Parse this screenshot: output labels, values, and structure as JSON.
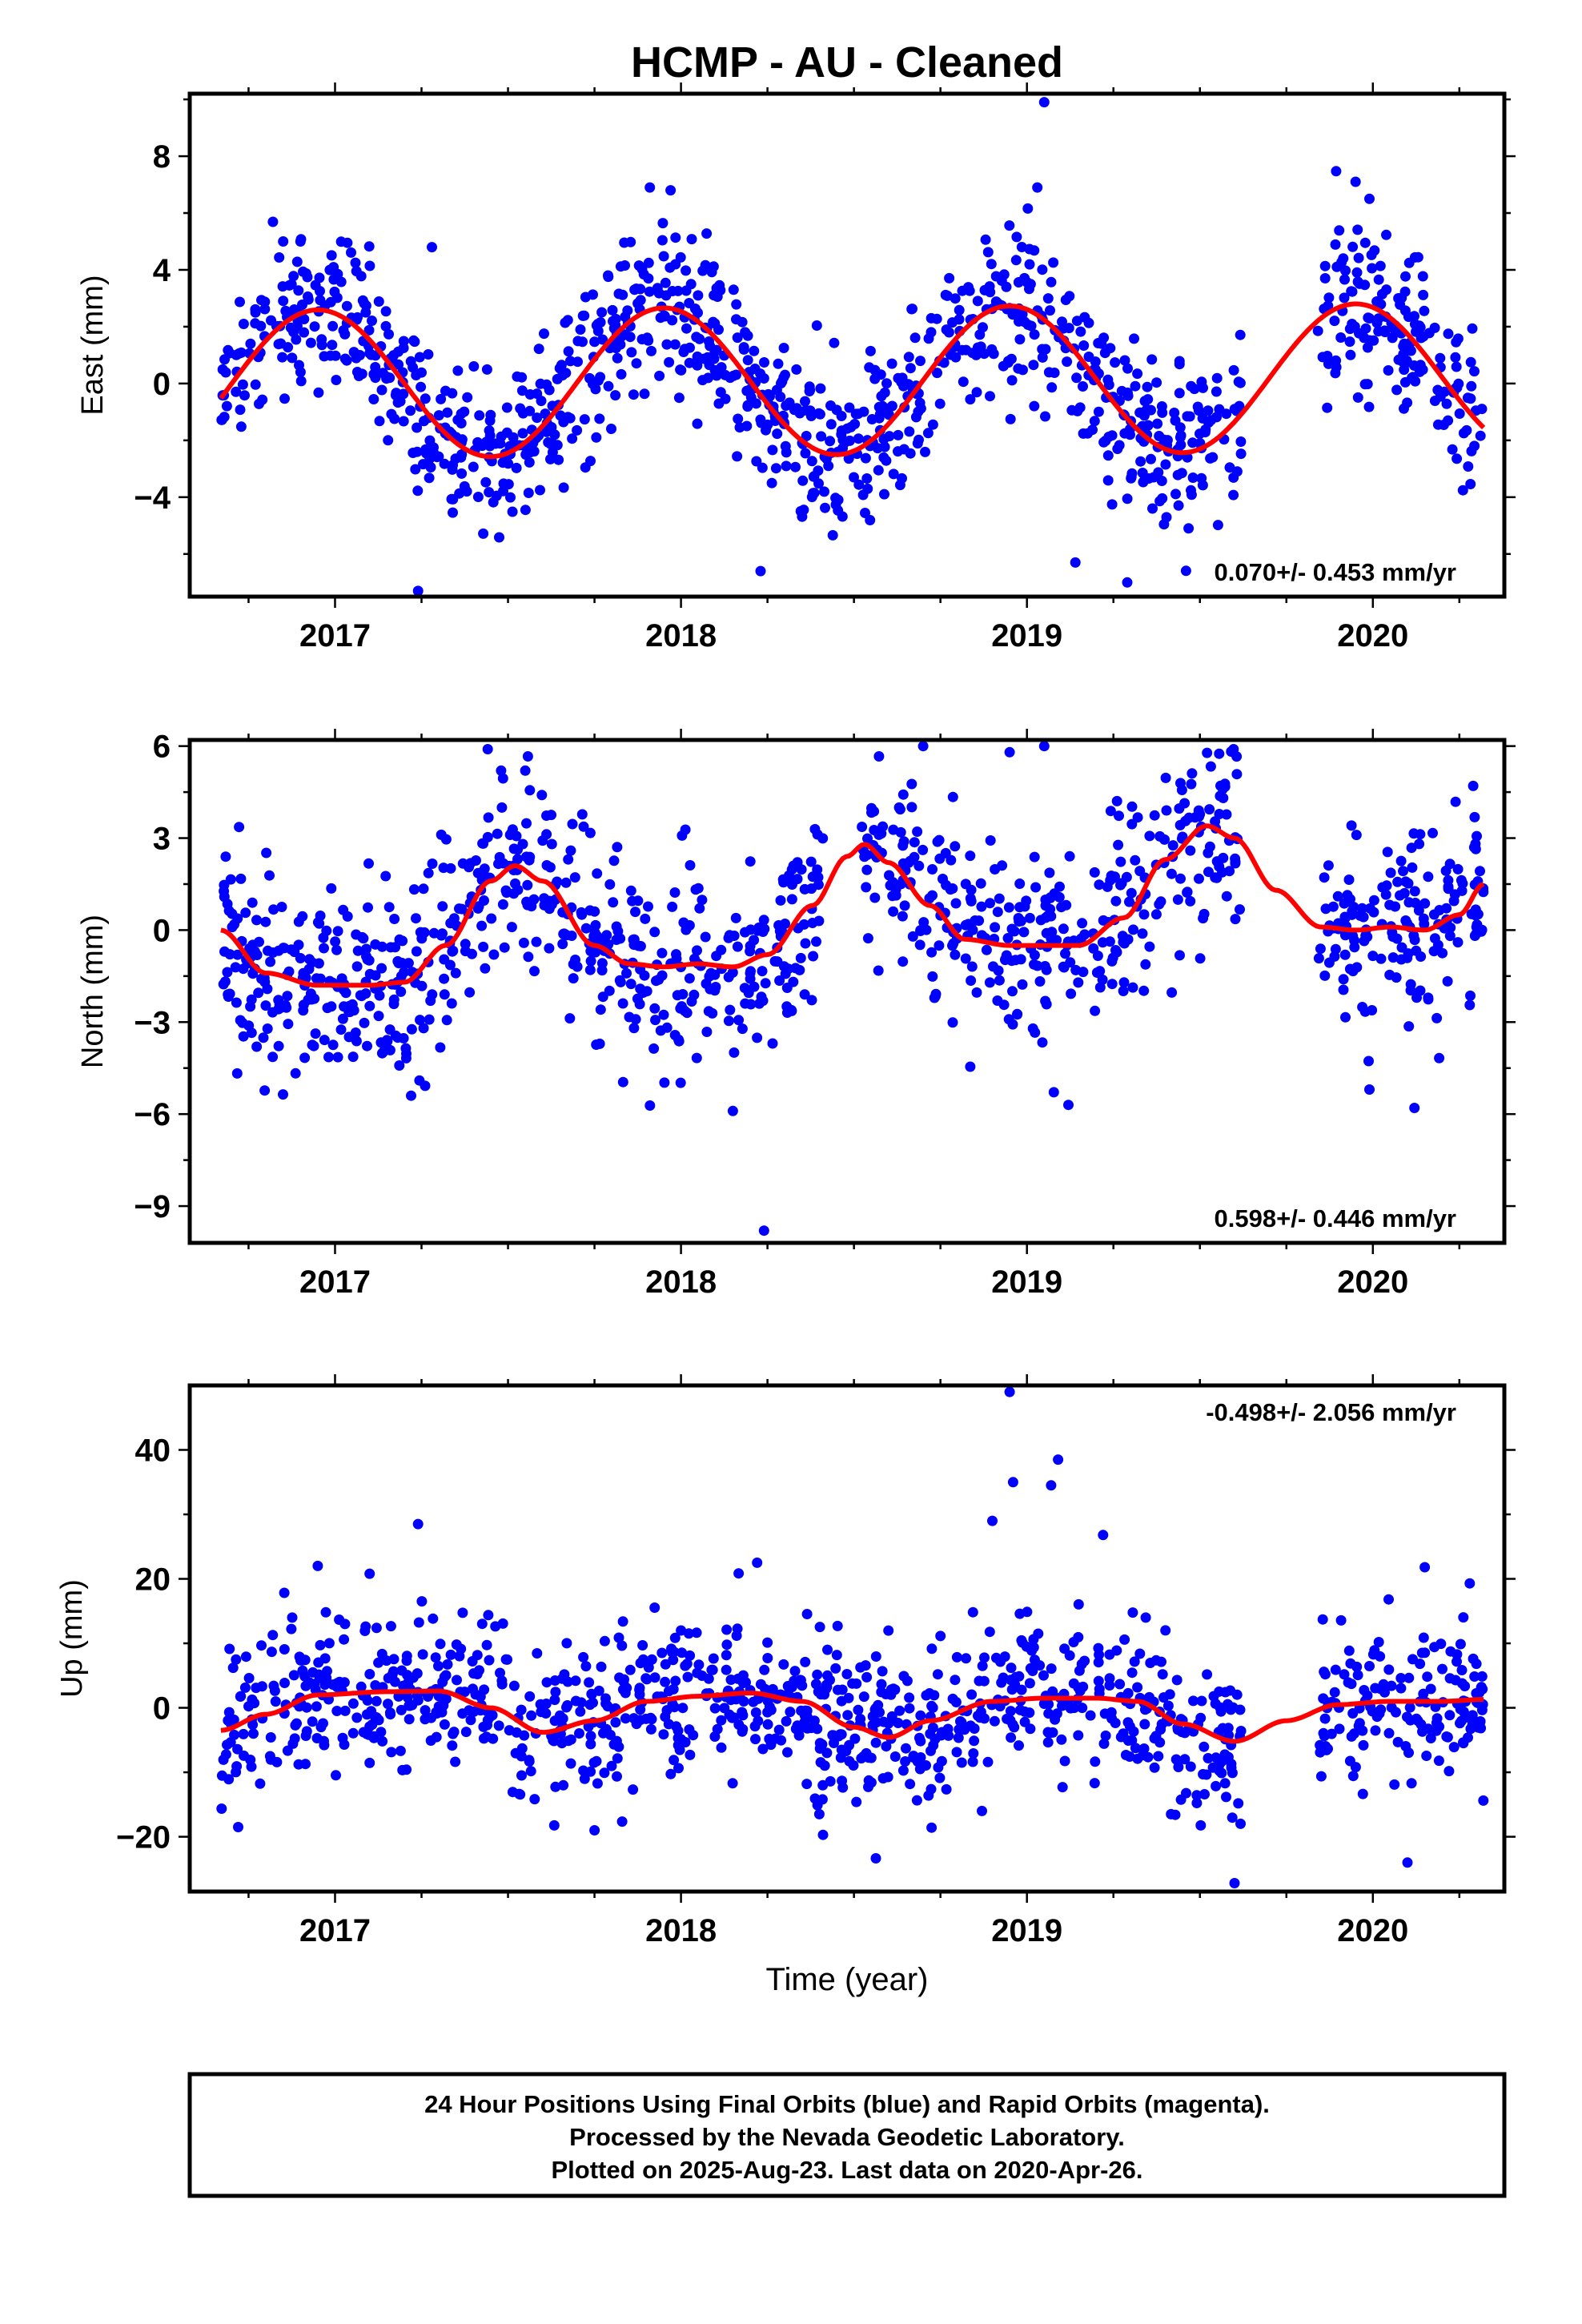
{
  "figure": {
    "title": "HCMP  - AU - Cleaned",
    "xlabel": "Time (year)",
    "colors": {
      "final_orbits": "#0000ff",
      "rapid_orbits": "#ff00ff",
      "model": "#ff0000",
      "frame": "#000000"
    }
  },
  "footer": {
    "line1": "24 Hour Positions Using Final Orbits (blue) and Rapid Orbits (magenta).",
    "line2": "Processed by the Nevada Geodetic Laboratory.",
    "line3": "Plotted on 2025-Aug-23. Last data on 2020-Apr-26."
  },
  "chart_data": [
    {
      "type": "scatter",
      "ylabel": "East (mm)",
      "rate_text": "0.070+/- 0.453 mm/yr",
      "rate_position": "bottom-right",
      "xlim": [
        2016.58,
        2020.38
      ],
      "ylim": [
        -7.5,
        10.2
      ],
      "xticks": [
        2017,
        2018,
        2019,
        2020
      ],
      "xtick_labels": [
        "2017",
        "2018",
        "2019",
        "2020"
      ],
      "yticks": [
        -4,
        0,
        4,
        8
      ],
      "ytick_labels": [
        "−4",
        "0",
        "4",
        "8"
      ],
      "data_span": [
        2016.67,
        2020.32
      ],
      "gaps": [
        [
          2019.62,
          2019.84
        ]
      ],
      "seasonal": {
        "mean": 0.1,
        "trend": 0.07,
        "amp1": 2.6,
        "peak": 0.95,
        "amp2": 0.0,
        "peak2": 0.0
      },
      "scatter_sd": 1.4,
      "n_points": 1150,
      "seed": 11,
      "outliers": [
        [
          2016.85,
          5.0
        ],
        [
          2016.9,
          5.0
        ],
        [
          2017.24,
          -7.3
        ],
        [
          2017.28,
          4.8
        ],
        [
          2017.91,
          6.9
        ],
        [
          2017.97,
          6.8
        ],
        [
          2018.23,
          -6.6
        ],
        [
          2019.03,
          6.9
        ],
        [
          2019.05,
          9.9
        ],
        [
          2019.14,
          -6.3
        ],
        [
          2019.29,
          -7.0
        ],
        [
          2019.95,
          7.1
        ],
        [
          2019.99,
          6.5
        ]
      ]
    },
    {
      "type": "scatter",
      "ylabel": "North (mm)",
      "rate_text": "0.598+/- 0.446 mm/yr",
      "rate_position": "bottom-right",
      "xlim": [
        2016.58,
        2020.38
      ],
      "ylim": [
        -10.2,
        6.2
      ],
      "xticks": [
        2017,
        2018,
        2019,
        2020
      ],
      "xtick_labels": [
        "2017",
        "2018",
        "2019",
        "2020"
      ],
      "yticks": [
        -9,
        -6,
        -3,
        0,
        3,
        6
      ],
      "ytick_labels": [
        "−9",
        "−6",
        "−3",
        "0",
        "3",
        "6"
      ],
      "data_span": [
        2016.67,
        2020.32
      ],
      "gaps": [
        [
          2019.62,
          2019.84
        ],
        [
          2018.41,
          2018.52
        ]
      ],
      "model_points": [
        [
          2016.67,
          0.0
        ],
        [
          2016.8,
          -1.4
        ],
        [
          2016.95,
          -1.8
        ],
        [
          2017.1,
          -1.8
        ],
        [
          2017.2,
          -1.7
        ],
        [
          2017.32,
          -0.5
        ],
        [
          2017.45,
          1.6
        ],
        [
          2017.52,
          2.1
        ],
        [
          2017.6,
          1.6
        ],
        [
          2017.75,
          -0.5
        ],
        [
          2017.85,
          -1.1
        ],
        [
          2017.95,
          -1.2
        ],
        [
          2018.05,
          -1.1
        ],
        [
          2018.15,
          -1.2
        ],
        [
          2018.25,
          -0.8
        ],
        [
          2018.38,
          0.8
        ],
        [
          2018.48,
          2.4
        ],
        [
          2018.53,
          2.8
        ],
        [
          2018.6,
          2.2
        ],
        [
          2018.72,
          0.8
        ],
        [
          2018.82,
          -0.3
        ],
        [
          2018.95,
          -0.5
        ],
        [
          2019.05,
          -0.5
        ],
        [
          2019.15,
          -0.5
        ],
        [
          2019.28,
          0.4
        ],
        [
          2019.4,
          2.3
        ],
        [
          2019.52,
          3.4
        ],
        [
          2019.6,
          3.0
        ],
        [
          2019.72,
          1.3
        ],
        [
          2019.85,
          0.1
        ],
        [
          2019.95,
          0.0
        ],
        [
          2020.05,
          0.1
        ],
        [
          2020.15,
          0.0
        ],
        [
          2020.25,
          0.5
        ],
        [
          2020.32,
          1.5
        ]
      ],
      "scatter_sd": 1.5,
      "n_points": 1100,
      "seed": 23,
      "outliers": [
        [
          2017.22,
          -5.4
        ],
        [
          2017.48,
          5.2
        ],
        [
          2017.55,
          5.2
        ],
        [
          2018.15,
          -5.9
        ],
        [
          2018.24,
          -9.8
        ],
        [
          2018.7,
          6.0
        ],
        [
          2018.95,
          5.8
        ],
        [
          2019.05,
          6.0
        ],
        [
          2019.12,
          -5.7
        ],
        [
          2019.99,
          -5.2
        ],
        [
          2020.12,
          -5.8
        ],
        [
          2020.29,
          4.7
        ]
      ]
    },
    {
      "type": "scatter",
      "ylabel": "Up (mm)",
      "rate_text": "-0.498+/- 2.056 mm/yr",
      "rate_position": "top-right",
      "xlim": [
        2016.58,
        2020.38
      ],
      "ylim": [
        -28.5,
        50
      ],
      "xticks": [
        2017,
        2018,
        2019,
        2020
      ],
      "xtick_labels": [
        "2017",
        "2018",
        "2019",
        "2020"
      ],
      "yticks": [
        -20,
        0,
        20,
        40
      ],
      "ytick_labels": [
        "−20",
        "0",
        "20",
        "40"
      ],
      "data_span": [
        2016.67,
        2020.32
      ],
      "gaps": [
        [
          2019.62,
          2019.84
        ]
      ],
      "model_points": [
        [
          2016.67,
          -3.5
        ],
        [
          2016.8,
          -1.0
        ],
        [
          2016.95,
          2.0
        ],
        [
          2017.15,
          2.5
        ],
        [
          2017.3,
          2.6
        ],
        [
          2017.45,
          0.0
        ],
        [
          2017.6,
          -3.8
        ],
        [
          2017.75,
          -2.0
        ],
        [
          2017.9,
          1.0
        ],
        [
          2018.05,
          1.8
        ],
        [
          2018.2,
          2.3
        ],
        [
          2018.35,
          1.0
        ],
        [
          2018.5,
          -3.0
        ],
        [
          2018.6,
          -4.6
        ],
        [
          2018.72,
          -2.0
        ],
        [
          2018.9,
          1.0
        ],
        [
          2019.05,
          1.5
        ],
        [
          2019.2,
          1.5
        ],
        [
          2019.32,
          1.0
        ],
        [
          2019.45,
          -2.5
        ],
        [
          2019.6,
          -5.2
        ],
        [
          2019.75,
          -2.0
        ],
        [
          2019.9,
          0.5
        ],
        [
          2020.05,
          1.0
        ],
        [
          2020.2,
          1.0
        ],
        [
          2020.32,
          1.3
        ]
      ],
      "scatter_sd": 6.0,
      "n_points": 1100,
      "seed": 37,
      "outliers": [
        [
          2016.72,
          -18.5
        ],
        [
          2016.95,
          22.0
        ],
        [
          2017.1,
          20.8
        ],
        [
          2017.24,
          28.5
        ],
        [
          2017.75,
          -19.0
        ],
        [
          2018.22,
          22.5
        ],
        [
          2018.4,
          -16.5
        ],
        [
          2018.87,
          -16.0
        ],
        [
          2018.9,
          29.0
        ],
        [
          2018.95,
          49.0
        ],
        [
          2018.96,
          35.0
        ],
        [
          2019.07,
          34.5
        ],
        [
          2019.09,
          38.5
        ],
        [
          2019.22,
          26.8
        ],
        [
          2019.6,
          -27.2
        ],
        [
          2020.1,
          -24.0
        ],
        [
          2020.15,
          21.8
        ],
        [
          2020.28,
          19.3
        ]
      ]
    }
  ]
}
